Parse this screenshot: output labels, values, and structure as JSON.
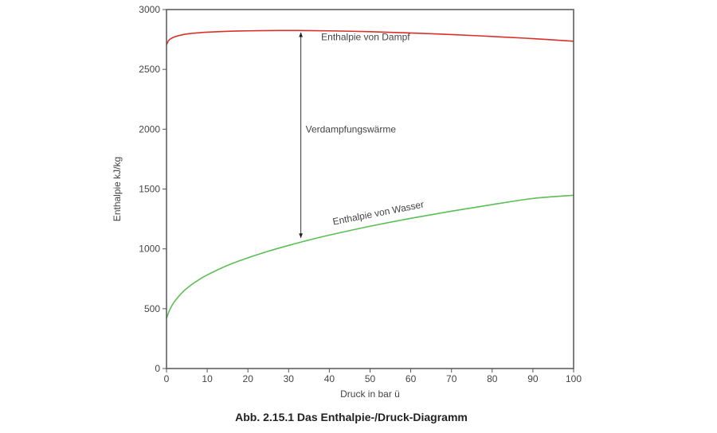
{
  "chart_data": {
    "type": "line",
    "title": "",
    "caption": "Abb. 2.15.1 Das Enthalpie-/Druck-Diagramm",
    "xlabel": "Druck in bar ü",
    "ylabel": "Enthalpie kJ/kg",
    "xlim": [
      0,
      100
    ],
    "ylim": [
      0,
      3000
    ],
    "xticks": [
      0,
      10,
      20,
      30,
      40,
      50,
      60,
      70,
      80,
      90,
      100
    ],
    "yticks": [
      0,
      500,
      1000,
      1500,
      2000,
      2500,
      3000
    ],
    "grid": false,
    "series": [
      {
        "name": "Enthalpie von Dampf",
        "color": "#d9302a",
        "x": [
          0,
          0.5,
          1,
          2,
          4,
          6,
          8,
          10,
          15,
          20,
          25,
          30,
          35,
          40,
          50,
          60,
          70,
          80,
          90,
          100
        ],
        "y": [
          2705,
          2740,
          2755,
          2772,
          2790,
          2800,
          2806,
          2811,
          2818,
          2822,
          2824,
          2825,
          2824,
          2822,
          2815,
          2804,
          2791,
          2775,
          2757,
          2735
        ]
      },
      {
        "name": "Enthalpie von Wasser",
        "color": "#5cbf55",
        "x": [
          0,
          0.5,
          1,
          2,
          4,
          6,
          8,
          10,
          15,
          20,
          25,
          30,
          35,
          40,
          50,
          60,
          70,
          80,
          90,
          100
        ],
        "y": [
          419,
          467,
          505,
          561,
          640,
          697,
          743,
          782,
          862,
          925,
          980,
          1029,
          1074,
          1115,
          1189,
          1255,
          1315,
          1370,
          1421,
          1448
        ]
      }
    ],
    "annotations": [
      {
        "text": "Verdampfungswärme",
        "type": "double-arrow",
        "x": 33,
        "y_from": 1080,
        "y_to": 2820
      },
      {
        "text": "Enthalpie von Dampf",
        "x": 38,
        "y": 2745,
        "rotation": 0
      },
      {
        "text": "Enthalpie von Wasser",
        "x": 41,
        "y": 1200,
        "rotation": -11
      }
    ]
  }
}
